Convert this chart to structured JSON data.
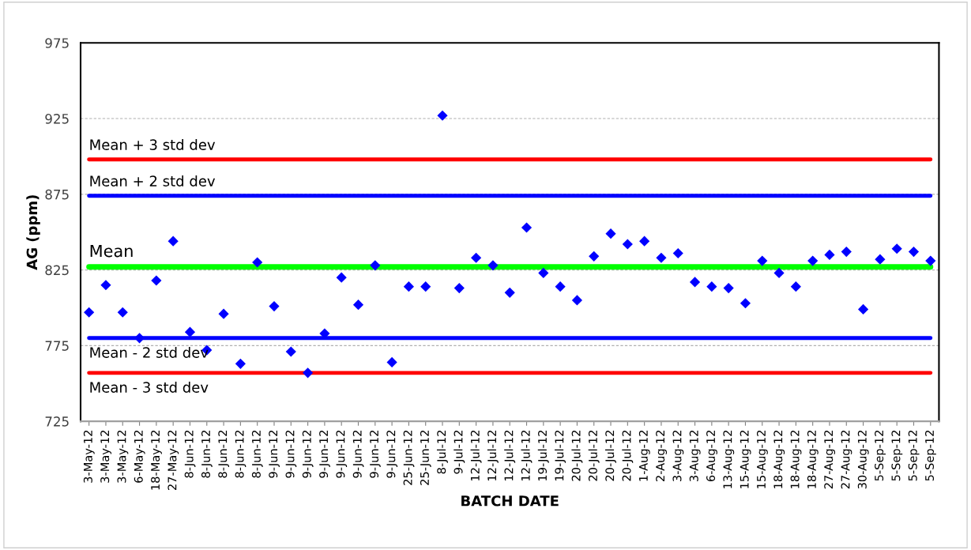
{
  "chart_data": {
    "type": "scatter",
    "categories": [
      "3-May-12",
      "3-May-12",
      "3-May-12",
      "6-May-12",
      "18-May-12",
      "27-May-12",
      "8-Jun-12",
      "8-Jun-12",
      "8-Jun-12",
      "8-Jun-12",
      "8-Jun-12",
      "9-Jun-12",
      "9-Jun-12",
      "9-Jun-12",
      "9-Jun-12",
      "9-Jun-12",
      "9-Jun-12",
      "9-Jun-12",
      "9-Jun-12",
      "25-Jun-12",
      "25-Jun-12",
      "8-Jul-12",
      "9-Jul-12",
      "12-Jul-12",
      "12-Jul-12",
      "12-Jul-12",
      "12-Jul-12",
      "19-Jul-12",
      "19-Jul-12",
      "20-Jul-12",
      "20-Jul-12",
      "20-Jul-12",
      "20-Jul-12",
      "1-Aug-12",
      "2-Aug-12",
      "3-Aug-12",
      "3-Aug-12",
      "6-Aug-12",
      "13-Aug-12",
      "15-Aug-12",
      "15-Aug-12",
      "18-Aug-12",
      "18-Aug-12",
      "18-Aug-12",
      "27-Aug-12",
      "27-Aug-12",
      "30-Aug-12",
      "5-Sep-12",
      "5-Sep-12",
      "5-Sep-12",
      "5-Sep-12"
    ],
    "series": [
      {
        "color": "#0000ff",
        "values": [
          797,
          815,
          797,
          780,
          818,
          844,
          784,
          772,
          796,
          763,
          830,
          801,
          771,
          757,
          783,
          820,
          802,
          828,
          764,
          814,
          814,
          927,
          813,
          833,
          828,
          810,
          853,
          823,
          814,
          805,
          834,
          849,
          842,
          844,
          833,
          836,
          817,
          814,
          813,
          803,
          831,
          823,
          814,
          831,
          835,
          837,
          799,
          832,
          839,
          837,
          831
        ]
      }
    ],
    "xlabel": "BATCH DATE",
    "ylabel": "AG (ppm)",
    "ylim": [
      725,
      975
    ],
    "yticks": [
      725,
      775,
      825,
      875,
      925,
      975
    ],
    "grid": "y",
    "marker": "diamond",
    "ref_lines": [
      {
        "axis": "y",
        "value": 898,
        "label": "Mean + 3 std dev",
        "color": "#ff0000",
        "line_style": "solid"
      },
      {
        "axis": "y",
        "value": 874,
        "label": "Mean + 2 std dev",
        "color": "#0000ff",
        "line_style": "solid"
      },
      {
        "axis": "y",
        "value": 827,
        "label": "Mean",
        "color": "#00ff00",
        "line_style": "solid"
      },
      {
        "axis": "y",
        "value": 780,
        "label": "Mean - 2 std dev",
        "color": "#0000ff",
        "line_style": "solid"
      },
      {
        "axis": "y",
        "value": 757,
        "label": "Mean - 3 std dev",
        "color": "#ff0000",
        "line_style": "solid"
      }
    ]
  }
}
